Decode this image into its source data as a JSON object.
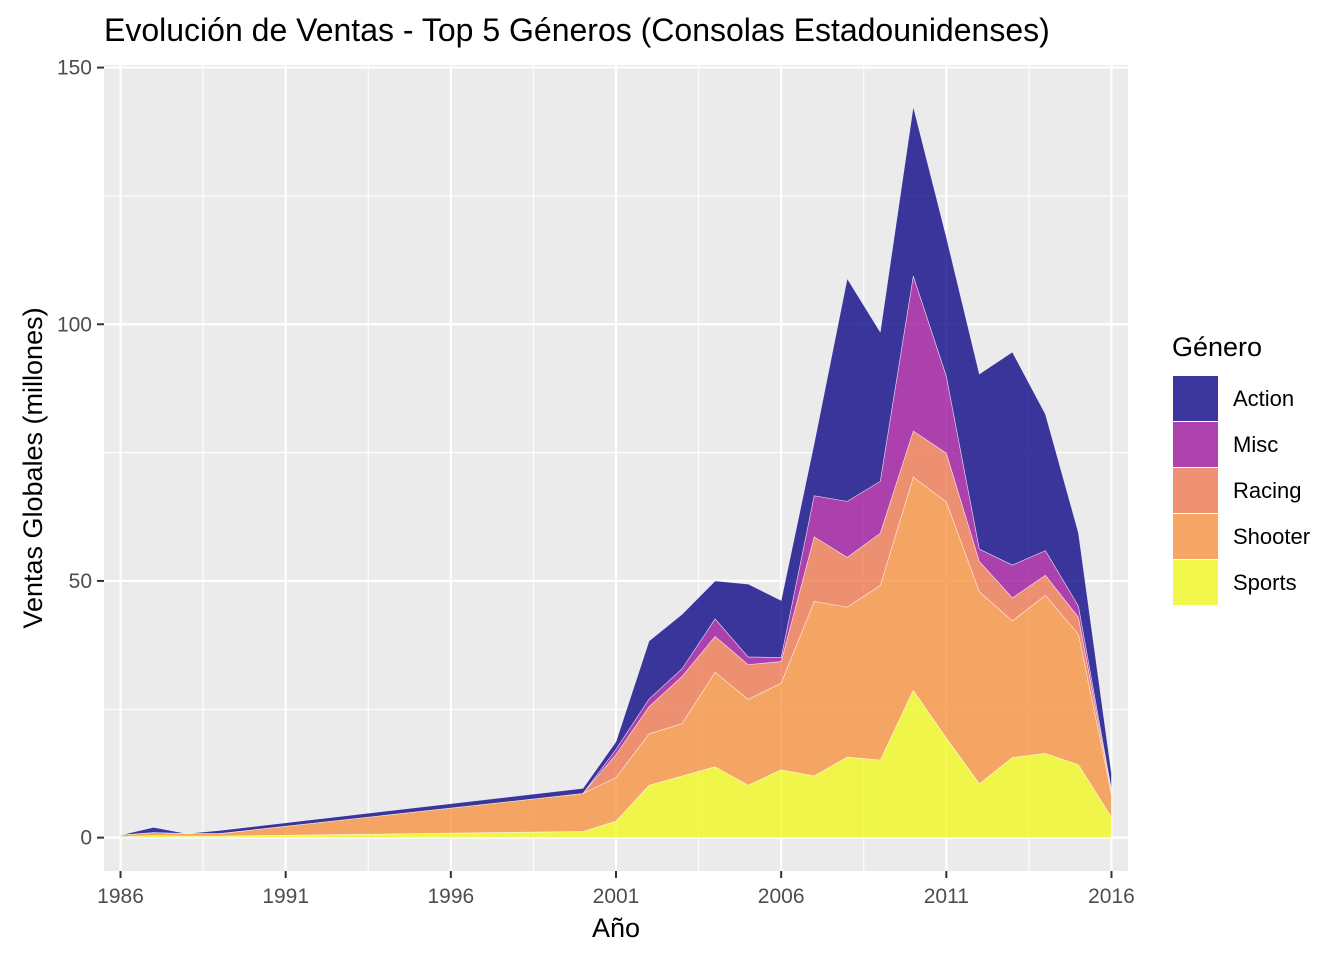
{
  "chart_data": {
    "type": "area",
    "stacked": true,
    "title": "Evolución de Ventas - Top 5 Géneros (Consolas Estadounidenses)",
    "xlabel": "Año",
    "ylabel": "Ventas Globales (millones)",
    "xlim": [
      1985.5,
      2016.5
    ],
    "ylim": [
      -6.5,
      150.5
    ],
    "x_ticks": [
      1986,
      1991,
      1996,
      2001,
      2006,
      2011,
      2016
    ],
    "y_ticks": [
      0,
      50,
      100,
      150
    ],
    "grid": true,
    "legend_title": "Género",
    "legend_position": "right",
    "stack_order_bottom_to_top": [
      "Sports",
      "Shooter",
      "Racing",
      "Misc",
      "Action"
    ],
    "x": [
      1986,
      1987,
      1988,
      1989,
      2000,
      2001,
      2002,
      2003,
      2004,
      2005,
      2006,
      2007,
      2008,
      2009,
      2010,
      2011,
      2012,
      2013,
      2014,
      2015,
      2016
    ],
    "series": [
      {
        "name": "Action",
        "color": "#0D0887",
        "values": [
          0,
          1.0,
          0,
          0.6,
          1.0,
          1.5,
          11.3,
          10.6,
          7.4,
          14.2,
          11.1,
          10.2,
          43.4,
          29.1,
          33.0,
          27.1,
          34.1,
          41.5,
          26.6,
          14.3,
          3.2
        ]
      },
      {
        "name": "Misc",
        "color": "#9C179E",
        "values": [
          0,
          0,
          0,
          0,
          0,
          1.0,
          1.5,
          1.5,
          3.4,
          1.5,
          0.8,
          8.0,
          10.9,
          10.1,
          30.2,
          15.0,
          2.4,
          6.4,
          4.8,
          2.2,
          0.3
        ]
      },
      {
        "name": "Racing",
        "color": "#ED7953",
        "_note": "rendered lighter by alpha",
        "values": [
          0,
          0,
          0,
          0,
          0,
          4.5,
          5.3,
          9.2,
          7.0,
          6.8,
          4.2,
          12.6,
          9.7,
          10.2,
          9.0,
          9.5,
          5.9,
          4.5,
          3.9,
          3.3,
          0.6
        ]
      },
      {
        "name": "Shooter",
        "color": "#F89441",
        "values": [
          0.3,
          0.6,
          0.5,
          0.5,
          7.4,
          8.5,
          10.0,
          10.2,
          18.4,
          16.7,
          16.9,
          34.0,
          29.2,
          34.0,
          41.5,
          46.0,
          37.4,
          26.6,
          30.8,
          25.4,
          4.4
        ]
      },
      {
        "name": "Sports",
        "color": "#F0F921",
        "values": [
          0.2,
          0.4,
          0.3,
          0.3,
          1.2,
          3.2,
          10.2,
          12.0,
          13.8,
          10.2,
          13.2,
          12.0,
          15.7,
          15.1,
          28.7,
          19.4,
          10.5,
          15.6,
          16.4,
          14.2,
          4.0
        ]
      }
    ]
  }
}
